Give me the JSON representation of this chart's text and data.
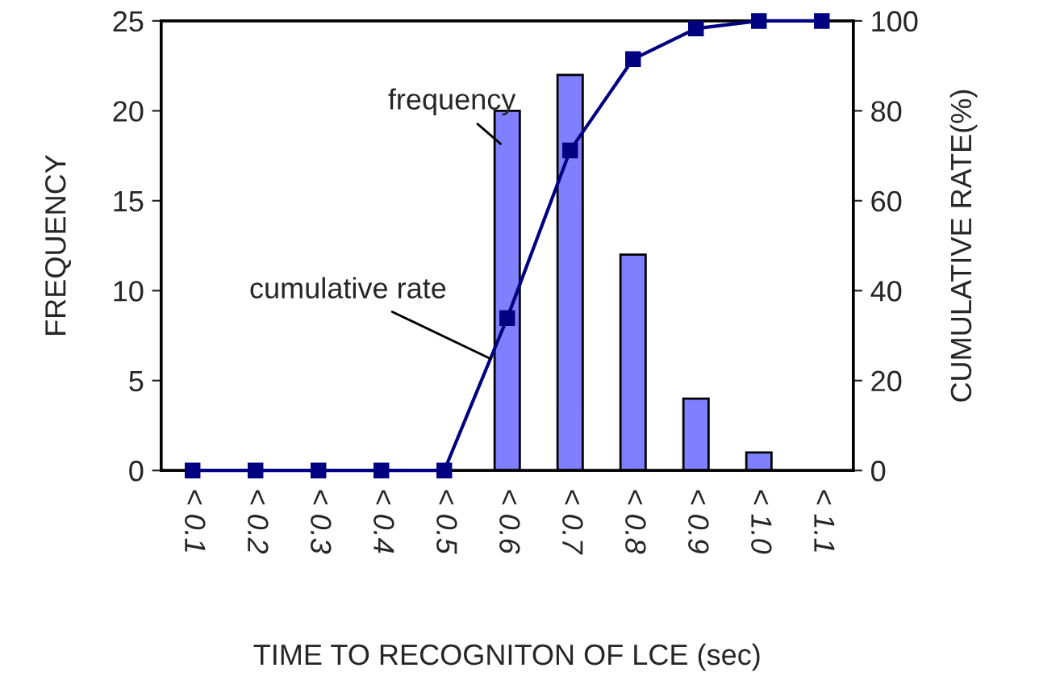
{
  "chart_data": {
    "type": "bar",
    "xlabel": "TIME TO RECOGNITON OF LCE (sec)",
    "ylabel": "FREQUENCY",
    "y2label": "CUMULATIVE RATE(%)",
    "categories": [
      "< 0.1",
      "< 0.2",
      "< 0.3",
      "< 0.4",
      "< 0.5",
      "< 0.6",
      "< 0.7",
      "< 0.8",
      "< 0.9",
      "< 1.0",
      "< 1.1"
    ],
    "series": [
      {
        "name": "frequency",
        "color": "#8080ff",
        "values": [
          0,
          0,
          0,
          0,
          0,
          20,
          22,
          12,
          4,
          1,
          0
        ]
      },
      {
        "name": "cumulative rate",
        "type": "line",
        "axis": "y2",
        "color": "#000080",
        "marker": "square",
        "line_style": "solid",
        "values": [
          0,
          0,
          0,
          0,
          0,
          33.9,
          71.2,
          91.5,
          98.3,
          100,
          100
        ]
      }
    ],
    "ylim": [
      0,
      25
    ],
    "yticks": [
      0,
      5,
      10,
      15,
      20,
      25
    ],
    "y2lim": [
      0,
      100
    ],
    "y2ticks": [
      0,
      20,
      40,
      60,
      80,
      100
    ],
    "grid": false,
    "legend": false
  }
}
